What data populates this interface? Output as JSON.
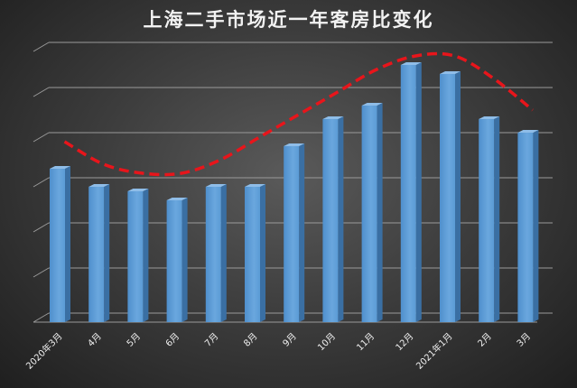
{
  "chart_data": {
    "type": "bar",
    "title": "上海二手市场近一年客房比变化",
    "xlabel": "",
    "ylabel": "",
    "categories": [
      "2020年3月",
      "4月",
      "5月",
      "6月",
      "7月",
      "8月",
      "9月",
      "10月",
      "11月",
      "12月",
      "2021年1月",
      "2月",
      "3月"
    ],
    "values": [
      3.4,
      3.0,
      2.9,
      2.7,
      3.0,
      3.0,
      3.9,
      4.5,
      4.8,
      5.7,
      5.5,
      4.5,
      4.2
    ],
    "ylim": [
      0,
      6
    ],
    "grid": true,
    "legend": "none",
    "colors": {
      "bar_front": "#5b9bd5",
      "bar_side": "#3a6fa3",
      "bar_top": "#8fbde8",
      "gridline": "#9a9a9a",
      "trend_line": "#e8151b"
    },
    "trend_line": {
      "style": "dashed",
      "values": [
        4.0,
        3.5,
        3.3,
        3.3,
        3.6,
        4.1,
        4.6,
        5.1,
        5.6,
        5.9,
        5.9,
        5.4,
        4.7
      ]
    }
  }
}
